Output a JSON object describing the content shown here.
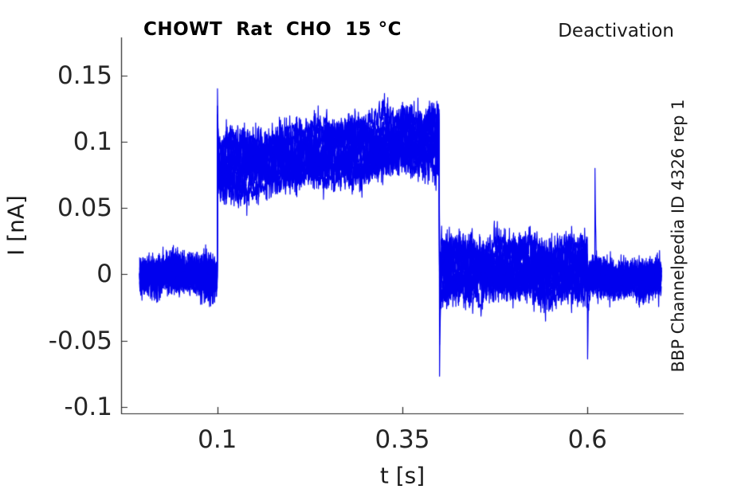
{
  "chart_data": {
    "type": "line",
    "title": "CHOWT  Rat  CHO  15 °C",
    "corner_label": "Deactivation",
    "side_label": "BBP Channelpedia ID 4326 rep 1",
    "xlabel": "t [s]",
    "ylabel": "I [nA]",
    "xlim": [
      -0.03,
      0.73
    ],
    "ylim": [
      -0.105,
      0.179
    ],
    "xticks": [
      0.1,
      0.35,
      0.6
    ],
    "xtick_labels": [
      "0.1",
      "0.35",
      "0.6"
    ],
    "yticks": [
      0.15,
      0.1,
      0.05,
      0,
      -0.05,
      -0.1
    ],
    "ytick_labels": [
      "0.15",
      "0.1",
      "0.05",
      "0",
      "-0.05",
      "-0.1"
    ],
    "grid": false,
    "legend": null,
    "box": false,
    "tick_direction": "in",
    "line_color": "#0000ee",
    "axis_color": "#262626",
    "text_color": "#1a1a1a",
    "background_color": "#ffffff",
    "n_sweeps": 10,
    "t_start": -0.005,
    "t_end": 0.7,
    "sample_dt": 0.0004,
    "description": "Whole-cell patch-clamp deactivation protocol: ~10 overlaid noisy current sweeps. Baseline 0 nA until t=0.1 s, capacitive spike to 0.155 nA, slowly ramping plateau band 0.06-0.13 nA until t=0.4 s, downward transient to -0.097 nA, tail band around 0 to 0.03 nA until t=0.6 s (down spike to -0.082 nA, up spike to 0.1 nA just after), then baseline noise around 0 until t=0.7 s.",
    "segments": [
      {
        "t0": -0.005,
        "t1": 0.1,
        "level_start": 0.0,
        "level_end": 0.0,
        "sweep_spread": 0.004,
        "noise_sigma": 0.006
      },
      {
        "t0": 0.1,
        "t1": 0.4,
        "level_start": 0.08,
        "level_end": 0.102,
        "sweep_spread": 0.016,
        "noise_sigma": 0.006
      },
      {
        "t0": 0.4,
        "t1": 0.6,
        "level_start": 0.004,
        "level_end": 0.004,
        "sweep_spread": 0.015,
        "noise_sigma": 0.0065
      },
      {
        "t0": 0.6,
        "t1": 0.7,
        "level_start": -0.003,
        "level_end": -0.003,
        "sweep_spread": 0.004,
        "noise_sigma": 0.0055
      }
    ],
    "transients": [
      {
        "t": 0.1,
        "peak": 0.155,
        "sweep": 0
      },
      {
        "t": 0.4,
        "peak": -0.097,
        "sweep": 0
      },
      {
        "t": 0.4,
        "peak": -0.058,
        "sweep": 3
      },
      {
        "t": 0.6,
        "peak": -0.082,
        "sweep": 1
      },
      {
        "t": 0.61,
        "peak": 0.0996,
        "sweep": 2
      }
    ]
  }
}
